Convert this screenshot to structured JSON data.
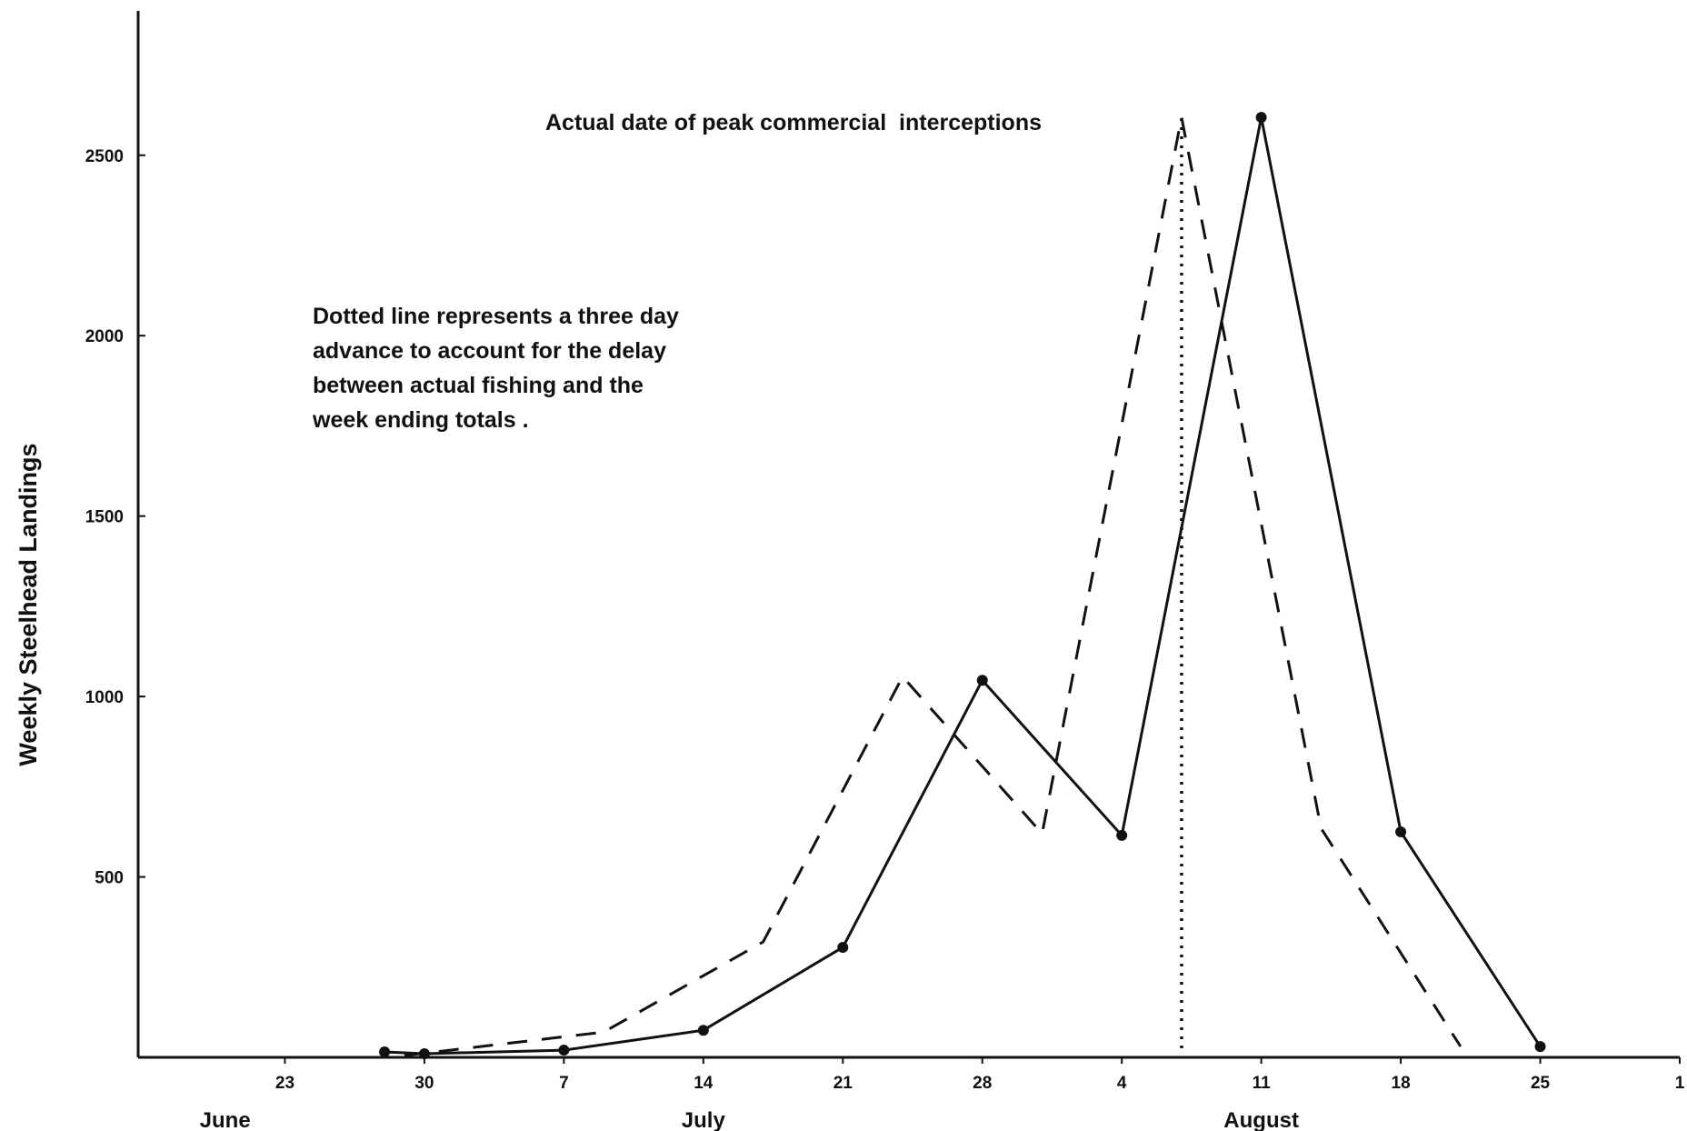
{
  "chart_data": {
    "type": "line",
    "title": "",
    "xlabel": "",
    "ylabel": "Weekly Steelhead Landings",
    "ylim": [
      0,
      2900
    ],
    "xlim": [
      "June 16",
      "September 1"
    ],
    "grid": false,
    "y_ticks": [
      500,
      1000,
      1500,
      2000,
      2500
    ],
    "x_ticks": [
      {
        "date": "June 23",
        "label": "23"
      },
      {
        "date": "June 30",
        "label": "30"
      },
      {
        "date": "July 7",
        "label": "7"
      },
      {
        "date": "July 14",
        "label": "14"
      },
      {
        "date": "July 21",
        "label": "21"
      },
      {
        "date": "July 28",
        "label": "28"
      },
      {
        "date": "August 4",
        "label": "4"
      },
      {
        "date": "August 11",
        "label": "11"
      },
      {
        "date": "August 18",
        "label": "18"
      },
      {
        "date": "August 25",
        "label": "25"
      },
      {
        "date": "September 1",
        "label": "1"
      }
    ],
    "months": [
      {
        "label": "June",
        "center_date": "June 20"
      },
      {
        "label": "July",
        "center_date": "July 14"
      },
      {
        "label": "August",
        "center_date": "August 11"
      }
    ],
    "series": [
      {
        "style": "solid",
        "markers": true,
        "points": [
          {
            "x": "June 28",
            "y": 15
          },
          {
            "x": "June 30",
            "y": 10
          },
          {
            "x": "July 7",
            "y": 20
          },
          {
            "x": "July 14",
            "y": 75
          },
          {
            "x": "July 21",
            "y": 305
          },
          {
            "x": "July 28",
            "y": 1045
          },
          {
            "x": "August 4",
            "y": 615
          },
          {
            "x": "August 11",
            "y": 2605
          },
          {
            "x": "August 18",
            "y": 625
          },
          {
            "x": "August 25",
            "y": 30
          }
        ]
      },
      {
        "style": "dashed",
        "markers": false,
        "points": [
          {
            "x": "June 29",
            "y": 5
          },
          {
            "x": "July 9",
            "y": 70
          },
          {
            "x": "July 17",
            "y": 320
          },
          {
            "x": "July 24",
            "y": 1055
          },
          {
            "x": "July 31",
            "y": 620
          },
          {
            "x": "August 7",
            "y": 2605
          },
          {
            "x": "August 14",
            "y": 635
          },
          {
            "x": "August 21",
            "y": 30
          }
        ]
      }
    ],
    "reference_line": {
      "style": "dotted",
      "x": "August 7"
    },
    "annotations": {
      "peak": "Actual date of peak commercial  interceptions",
      "dotted_line_note": [
        "Dotted line represents a three day",
        "advance to account for the delay",
        "between actual fishing and the",
        "week ending totals ."
      ]
    }
  }
}
